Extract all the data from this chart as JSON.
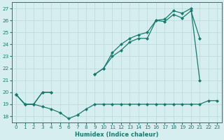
{
  "x": [
    0,
    1,
    2,
    3,
    4,
    5,
    6,
    7,
    8,
    9,
    10,
    11,
    12,
    13,
    14,
    15,
    16,
    17,
    18,
    19,
    20,
    21,
    22,
    23
  ],
  "line_flat": [
    19.8,
    19.0,
    19.0,
    18.8,
    18.6,
    18.3,
    17.8,
    18.1,
    18.6,
    19.0,
    19.0,
    19.0,
    19.0,
    19.0,
    19.0,
    19.0,
    19.0,
    19.0,
    19.0,
    19.0,
    19.0,
    19.0,
    19.3,
    19.3
  ],
  "line_mid": [
    19.8,
    19.0,
    19.0,
    20.0,
    20.0,
    null,
    null,
    null,
    null,
    21.5,
    22.0,
    23.0,
    23.5,
    24.2,
    24.5,
    24.5,
    26.0,
    25.9,
    26.5,
    26.2,
    26.8,
    24.5,
    null,
    null
  ],
  "line_top": [
    19.8,
    19.0,
    19.0,
    20.0,
    20.0,
    null,
    null,
    null,
    null,
    21.5,
    22.0,
    23.3,
    24.0,
    24.5,
    24.8,
    25.0,
    26.0,
    26.1,
    26.8,
    26.6,
    27.0,
    21.0,
    null,
    null
  ],
  "color": "#1a7a6e",
  "bg_color": "#d6eef0",
  "grid_color": "#b8d8da",
  "xlabel": "Humidex (Indice chaleur)",
  "xlim": [
    -0.5,
    23.5
  ],
  "ylim": [
    17.5,
    27.5
  ],
  "yticks": [
    18,
    19,
    20,
    21,
    22,
    23,
    24,
    25,
    26,
    27
  ],
  "xticks": [
    0,
    1,
    2,
    3,
    4,
    5,
    6,
    7,
    8,
    9,
    10,
    11,
    12,
    13,
    14,
    15,
    16,
    17,
    18,
    19,
    20,
    21,
    22,
    23
  ]
}
